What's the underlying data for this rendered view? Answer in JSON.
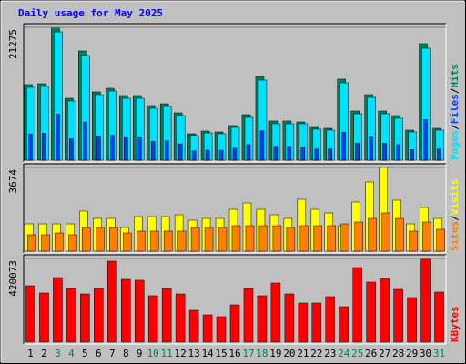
{
  "title": "Daily usage for May 2025",
  "x_axis": {
    "categories": [
      "1",
      "2",
      "3",
      "4",
      "5",
      "6",
      "7",
      "8",
      "9",
      "10",
      "11",
      "12",
      "13",
      "14",
      "15",
      "16",
      "17",
      "18",
      "19",
      "20",
      "21",
      "22",
      "23",
      "24",
      "25",
      "26",
      "27",
      "28",
      "29",
      "30",
      "31"
    ],
    "colors": [
      "#000000",
      "#000000",
      "#00805c",
      "#00805c",
      "#000000",
      "#000000",
      "#000000",
      "#000000",
      "#000000",
      "#00805c",
      "#00805c",
      "#000000",
      "#000000",
      "#000000",
      "#000000",
      "#000000",
      "#00805c",
      "#00805c",
      "#000000",
      "#000000",
      "#000000",
      "#000000",
      "#000000",
      "#00805c",
      "#00805c",
      "#000000",
      "#000000",
      "#000000",
      "#000000",
      "#000000",
      "#00805c"
    ]
  },
  "chart_data": [
    {
      "type": "bar",
      "separator": "/",
      "ylim": [
        0,
        21275
      ],
      "yticks": [
        21275
      ],
      "series": [
        {
          "name": "Hits",
          "color": "#00805c",
          "values": [
            12095,
            12240,
            21275,
            9909,
            17486,
            10929,
            11512,
            10346,
            10346,
            8743,
            9035,
            7577,
            4226,
            4663,
            4517,
            5537,
            7286,
            13406,
            6266,
            6266,
            6120,
            5246,
            5100,
            12969,
            7869,
            10492,
            7869,
            7140,
            4809,
            18652,
            5100
          ]
        },
        {
          "name": "Files",
          "color": "#0040ff",
          "values": [
            4200,
            4300,
            7400,
            3400,
            6100,
            3800,
            4000,
            3600,
            3600,
            3000,
            3100,
            2600,
            1500,
            1600,
            1600,
            1900,
            2500,
            4700,
            2200,
            2200,
            2100,
            1800,
            1800,
            4500,
            2700,
            3700,
            2700,
            2500,
            1700,
            6500,
            1800
          ]
        },
        {
          "name": "Pages",
          "color": "#00e0ff",
          "values": [
            11658,
            11803,
            20546,
            9472,
            16758,
            10492,
            11075,
            9909,
            9909,
            8306,
            8598,
            7140,
            3934,
            4372,
            4226,
            5246,
            6849,
            12824,
            5829,
            5829,
            5829,
            4955,
            4809,
            12386,
            7432,
            10055,
            7432,
            6703,
            4517,
            17924,
            4809
          ]
        }
      ]
    },
    {
      "type": "bar",
      "separator": "/",
      "ylim": [
        0,
        3674
      ],
      "yticks": [
        3674
      ],
      "series": [
        {
          "name": "Visits",
          "color": "#ffff00",
          "values": [
            1198,
            1198,
            1198,
            1198,
            1757,
            1437,
            1437,
            1038,
            1517,
            1517,
            1517,
            1597,
            1358,
            1437,
            1437,
            1837,
            2116,
            1837,
            1597,
            1437,
            2276,
            1837,
            1677,
            1118,
            2156,
            3035,
            3674,
            2236,
            1198,
            1917,
            1437
          ]
        },
        {
          "name": "Sites",
          "color": "#ff8000",
          "values": [
            719,
            719,
            799,
            719,
            1038,
            1038,
            1038,
            799,
            878,
            878,
            878,
            878,
            1038,
            1038,
            1038,
            1118,
            1118,
            1118,
            1118,
            1038,
            1118,
            1118,
            1118,
            1198,
            1278,
            1437,
            1677,
            1437,
            878,
            1278,
            958
          ]
        }
      ]
    },
    {
      "type": "bar",
      "ylim": [
        0,
        420073
      ],
      "yticks": [
        420073
      ],
      "series": [
        {
          "name": "KBytes",
          "color": "#ff0000",
          "values": [
            283092,
            246564,
            324186,
            269394,
            241998,
            269394,
            406374,
            315054,
            310488,
            232866,
            269394,
            241998,
            159810,
            136980,
            127848,
            187206,
            269394,
            232866,
            296790,
            241998,
            196338,
            196338,
            228300,
            178074,
            374412,
            301356,
            319620,
            264828,
            223734,
            420073,
            251130
          ]
        }
      ]
    }
  ]
}
